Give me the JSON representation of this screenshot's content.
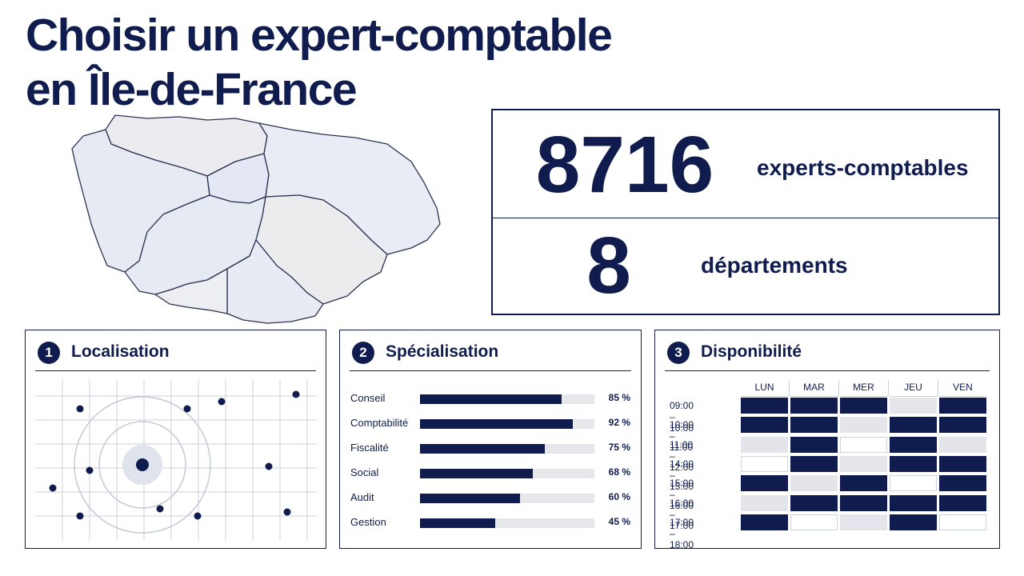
{
  "title": {
    "line1": "Choisir un expert-comptable",
    "line2": "en Île-de-France"
  },
  "stats": [
    {
      "value": "8716",
      "label": "experts-comptables"
    },
    {
      "value": "8",
      "label": "départements"
    }
  ],
  "panels": {
    "localisation": {
      "number": "1",
      "title": "Localisation"
    },
    "specialisation": {
      "number": "2",
      "title": "Spécialisation",
      "items": [
        {
          "label": "Conseil",
          "value": 85,
          "display": "85 %"
        },
        {
          "label": "Comptabilité",
          "value": 92,
          "display": "92 %"
        },
        {
          "label": "Fiscalité",
          "value": 75,
          "display": "75 %"
        },
        {
          "label": "Social",
          "value": 68,
          "display": "68 %"
        },
        {
          "label": "Audit",
          "value": 60,
          "display": "60 %"
        },
        {
          "label": "Gestion",
          "value": 45,
          "display": "45 %"
        }
      ]
    },
    "disponibilite": {
      "number": "3",
      "title": "Disponibilité",
      "days": [
        "LUN",
        "MAR",
        "MER",
        "JEU",
        "VEN"
      ],
      "slots": [
        "09:00 – 10:00",
        "10:00 – 11:00",
        "11:00 – 12:00",
        "14:00 – 15:00",
        "15:00 – 16:00",
        "16:00 – 17:00",
        "17:00 – 18:00"
      ],
      "grid": [
        [
          1,
          1,
          1,
          0,
          1
        ],
        [
          1,
          1,
          0,
          1,
          1
        ],
        [
          0,
          1,
          2,
          1,
          0
        ],
        [
          2,
          1,
          0,
          1,
          1
        ],
        [
          1,
          0,
          1,
          2,
          1
        ],
        [
          0,
          1,
          1,
          1,
          1
        ],
        [
          1,
          2,
          0,
          1,
          2
        ]
      ]
    }
  },
  "colors": {
    "navy": "#0f1c4d",
    "available": "#0f1c4d",
    "busy": "#e3e5ea",
    "free": "#ffffff"
  }
}
